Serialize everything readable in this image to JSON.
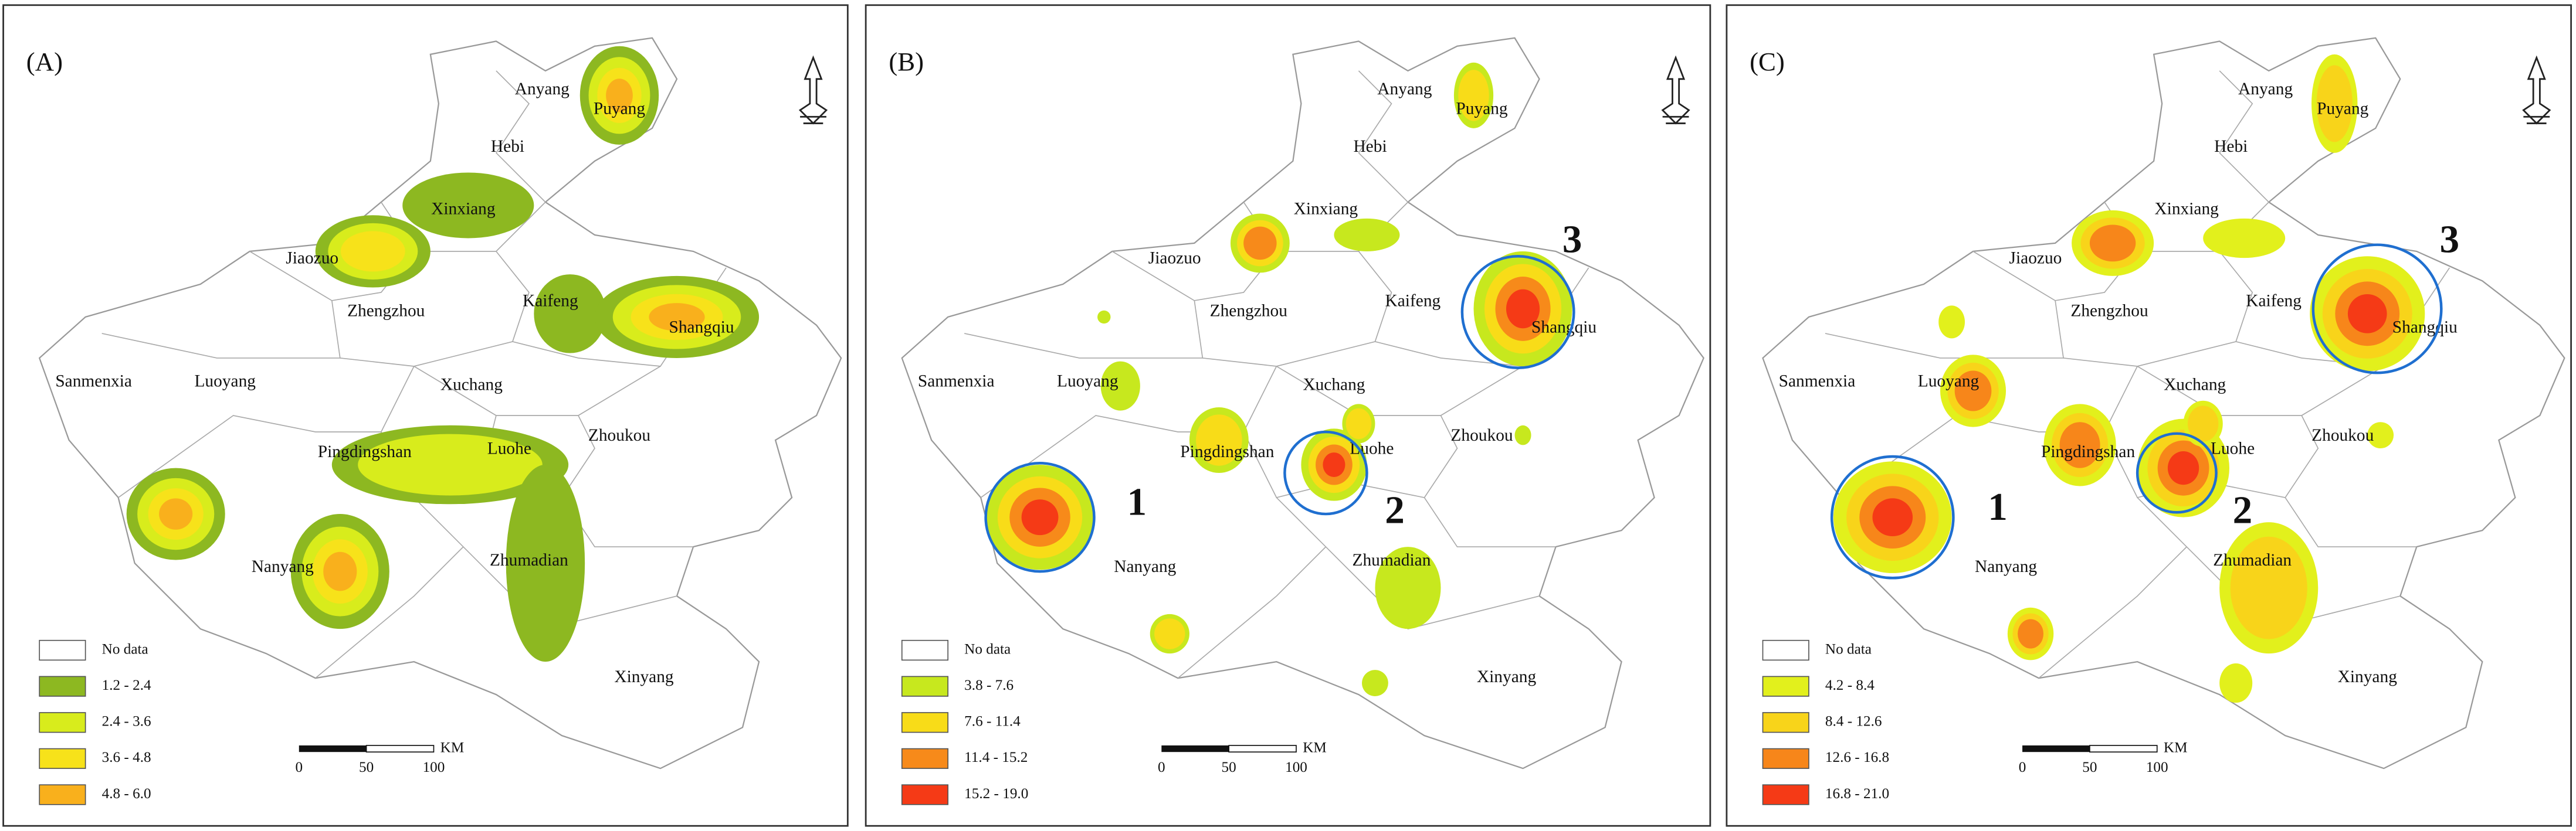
{
  "panels": [
    {
      "label": "(A)",
      "cities": [
        "Anyang",
        "Puyang",
        "Hebi",
        "Xinxiang",
        "Jiaozuo",
        "Zhengzhou",
        "Kaifeng",
        "Shangqiu",
        "Sanmenxia",
        "Luoyang",
        "Xuchang",
        "Zhoukou",
        "Pingdingshan",
        "Luohe",
        "Nanyang",
        "Zhumadian",
        "Xinyang"
      ],
      "legend": {
        "no_data": "No data",
        "items": [
          {
            "label": "1.2 - 2.4",
            "color": "#8db821"
          },
          {
            "label": "2.4 - 3.6",
            "color": "#d8ec1c"
          },
          {
            "label": "3.6 - 4.8",
            "color": "#f7e21a"
          },
          {
            "label": "4.8 - 6.0",
            "color": "#f9b01c"
          }
        ]
      },
      "scale": {
        "ticks": [
          0,
          50,
          100
        ],
        "unit": "KM"
      },
      "markers": []
    },
    {
      "label": "(B)",
      "cities": [
        "Anyang",
        "Puyang",
        "Hebi",
        "Xinxiang",
        "Jiaozuo",
        "Zhengzhou",
        "Kaifeng",
        "Shangqiu",
        "Sanmenxia",
        "Luoyang",
        "Xuchang",
        "Zhoukou",
        "Pingdingshan",
        "Luohe",
        "Nanyang",
        "Zhumadian",
        "Xinyang"
      ],
      "legend": {
        "no_data": "No data",
        "items": [
          {
            "label": "3.8 - 7.6",
            "color": "#c7e81e"
          },
          {
            "label": "7.6 - 11.4",
            "color": "#f8dc18"
          },
          {
            "label": "11.4 - 15.2",
            "color": "#f78a1a"
          },
          {
            "label": "15.2 - 19.0",
            "color": "#f53a16"
          }
        ]
      },
      "scale": {
        "ticks": [
          0,
          50,
          100
        ],
        "unit": "KM"
      },
      "markers": [
        1,
        2,
        3
      ]
    },
    {
      "label": "(C)",
      "cities": [
        "Anyang",
        "Puyang",
        "Hebi",
        "Xinxiang",
        "Jiaozuo",
        "Zhengzhou",
        "Kaifeng",
        "Shangqiu",
        "Sanmenxia",
        "Luoyang",
        "Xuchang",
        "Zhoukou",
        "Pingdingshan",
        "Luohe",
        "Nanyang",
        "Zhumadian",
        "Xinyang"
      ],
      "legend": {
        "no_data": "No data",
        "items": [
          {
            "label": "4.2 - 8.4",
            "color": "#e2f01c"
          },
          {
            "label": "8.4 - 12.6",
            "color": "#f8d41a"
          },
          {
            "label": "12.6 - 16.8",
            "color": "#f7861a"
          },
          {
            "label": "16.8 - 21.0",
            "color": "#f53a16"
          }
        ]
      },
      "scale": {
        "ticks": [
          0,
          50,
          100
        ],
        "unit": "KM"
      },
      "markers": [
        1,
        2,
        3
      ]
    }
  ]
}
